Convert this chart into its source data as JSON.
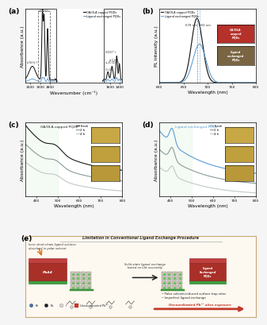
{
  "panel_a": {
    "label": "(a)",
    "legend": [
      "OA/OLA capped PQDs",
      "Ligand exchanged PQDs"
    ],
    "legend_colors": [
      "#1a1a1a",
      "#5b9bd5"
    ],
    "xlabel": "Wavenumber (cm⁻¹)",
    "ylabel": "Absorbance (a.u.)",
    "xlim": [
      3300,
      1350
    ],
    "xticks": [
      3200,
      3000,
      2800,
      1600,
      1400
    ]
  },
  "panel_b": {
    "label": "(b)",
    "legend": [
      "OA/OLA capped PQDs",
      "Ligand exchanged PQDs"
    ],
    "legend_colors": [
      "#1a1a1a",
      "#5b9bd5"
    ],
    "xlabel": "Wavelength (nm)",
    "ylabel": "PL intensity (a.u.)",
    "peak1": 678,
    "peak2": 683,
    "peak_label": "678 nm 683 nm",
    "xlim": [
      600,
      800
    ],
    "xticks": [
      600,
      625,
      650,
      675,
      700,
      725,
      750,
      800
    ],
    "box1_color": "#b5312a",
    "box1_text": "OA/OLA\ncapped\nPQDs",
    "box2_color": "#7a6543",
    "box2_text": "Ligand\nexchanged\nPQDs"
  },
  "panel_c": {
    "label": "(c)",
    "title": "OA/OLA capped PQDs",
    "title_color": "#1a1a1a",
    "legend": [
      "Fresh",
      "2 h",
      "4 h"
    ],
    "legend_colors": [
      "#1a1a1a",
      "#8a9a9a",
      "#c0c8c8"
    ],
    "xlabel": "Wavelength (nm)",
    "ylabel": "Absorbance (a.u.)",
    "xlim": [
      350,
      800
    ],
    "xticks": [
      400,
      500,
      600,
      700,
      800
    ],
    "swatch_color": "#c8a845",
    "swatch_colors": [
      "#c8a845",
      "#c0a03d",
      "#b89838"
    ]
  },
  "panel_d": {
    "label": "(d)",
    "title": "Ligand exchanged PQDs",
    "title_color": "#5b9bd5",
    "legend": [
      "Fresh",
      "2 h",
      "4 h"
    ],
    "legend_colors": [
      "#5b9bd5",
      "#8a9a9a",
      "#c0c8c8"
    ],
    "xlabel": "Wavelength (nm)",
    "ylabel": "Absorbance (a.u.)",
    "xlim": [
      350,
      800
    ],
    "xticks": [
      400,
      500,
      600,
      700,
      800
    ],
    "swatch_colors": [
      "#c8a845",
      "#c0a03d",
      "#b89838"
    ]
  },
  "panel_e": {
    "label": "(e)",
    "title": "Limitation in Conventional Ligand Exchange Procedure",
    "bg_color": "#fdf8f0",
    "border_color": "#c8a878",
    "bullet1": "Polar solvent-induced surface trap sites",
    "bullet2": "Imperfect ligand exchange",
    "footer_text": "Uncoordinated Pb²⁺ sites exposure",
    "left_label": "Ionic short-chain ligand solution\ndissolved in polar solvent",
    "center_label": "Solid-state ligand exchange\nbased on LbL assembly"
  },
  "figure_bg": "#f5f5f5"
}
